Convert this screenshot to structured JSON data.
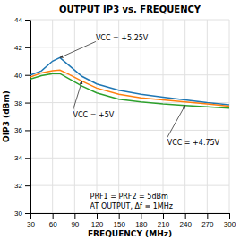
{
  "chart_data": {
    "type": "line",
    "title": "OUTPUT IP3 vs. FREQUENCY",
    "x_label": "FREQUENCY (MHz)",
    "y_label": "OIP3 (dBm)",
    "x": [
      30,
      45,
      60,
      70,
      80,
      100,
      120,
      150,
      180,
      210,
      240,
      270,
      300
    ],
    "series": [
      {
        "values": [
          40.0,
          40.3,
          41.0,
          41.25,
          40.8,
          39.9,
          39.35,
          38.9,
          38.6,
          38.4,
          38.2,
          38.0,
          37.85
        ]
      },
      {
        "values": [
          39.85,
          40.15,
          40.3,
          40.35,
          40.1,
          39.55,
          39.05,
          38.6,
          38.35,
          38.2,
          38.05,
          37.9,
          37.75
        ]
      },
      {
        "values": [
          39.7,
          39.95,
          40.1,
          40.1,
          39.8,
          39.2,
          38.7,
          38.25,
          38.05,
          37.9,
          37.8,
          37.7,
          37.6
        ]
      }
    ],
    "xlim": [
      30,
      300
    ],
    "ylim": [
      30,
      44
    ],
    "xticks": [
      30,
      60,
      90,
      120,
      150,
      180,
      210,
      240,
      270,
      300
    ],
    "yticks": [
      30,
      32,
      34,
      36,
      38,
      40,
      42,
      44
    ],
    "grid": true,
    "annotations": [
      "VCC = +5.25V",
      "VCC = +5V",
      "VCC = +4.75V",
      "PRF1 = PRF2 = 5dBm",
      "AT OUTPUT, Δf ≡ 1MHz"
    ]
  }
}
